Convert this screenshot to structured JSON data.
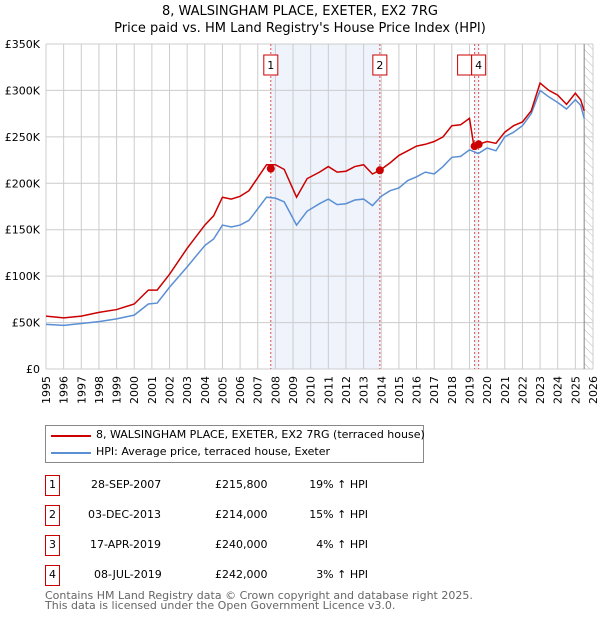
{
  "chart_data": {
    "type": "line",
    "title": "8, WALSINGHAM PLACE, EXETER, EX2 7RG",
    "subtitle": "Price paid vs. HM Land Registry's House Price Index (HPI)",
    "xlim": [
      1995,
      2026
    ],
    "ylim": [
      0,
      350000
    ],
    "x_ticks": [
      "1995",
      "1996",
      "1997",
      "1998",
      "1999",
      "2000",
      "2001",
      "2002",
      "2003",
      "2004",
      "2005",
      "2006",
      "2007",
      "2008",
      "2009",
      "2010",
      "2011",
      "2012",
      "2013",
      "2014",
      "2015",
      "2016",
      "2017",
      "2018",
      "2019",
      "2020",
      "2021",
      "2022",
      "2023",
      "2024",
      "2025",
      "2026"
    ],
    "y_ticks": [
      {
        "v": 0,
        "label": "£0"
      },
      {
        "v": 50000,
        "label": "£50K"
      },
      {
        "v": 100000,
        "label": "£100K"
      },
      {
        "v": 150000,
        "label": "£150K"
      },
      {
        "v": 200000,
        "label": "£200K"
      },
      {
        "v": 250000,
        "label": "£250K"
      },
      {
        "v": 300000,
        "label": "£300K"
      },
      {
        "v": 350000,
        "label": "£350K"
      }
    ],
    "grid": true,
    "series": [
      {
        "name": "8, WALSINGHAM PLACE, EXETER, EX2 7RG (terraced house)",
        "color": "#cc0000",
        "x": [
          1995,
          1996,
          1997,
          1998,
          1999,
          2000,
          2000.8,
          2001.3,
          2002,
          2003,
          2004,
          2004.5,
          2005,
          2005.5,
          2006,
          2006.5,
          2007.5,
          2008,
          2008.5,
          2009.2,
          2009.8,
          2010.5,
          2011,
          2011.5,
          2012,
          2012.5,
          2013,
          2013.5,
          2013.92,
          2014.5,
          2015,
          2015.5,
          2016,
          2016.5,
          2017,
          2017.5,
          2018,
          2018.5,
          2019,
          2019.25,
          2019.52,
          2020,
          2020.5,
          2021,
          2021.5,
          2022,
          2022.5,
          2023,
          2023.5,
          2024,
          2024.5,
          2025,
          2025.3,
          2025.5
        ],
        "y": [
          57000,
          55000,
          57000,
          61000,
          64000,
          70000,
          85000,
          85000,
          102000,
          130000,
          155000,
          165000,
          185000,
          183000,
          186000,
          192000,
          220000,
          220000,
          215000,
          185000,
          205000,
          212000,
          218000,
          212000,
          213000,
          218000,
          220000,
          210000,
          214000,
          222000,
          230000,
          235000,
          240000,
          242000,
          245000,
          250000,
          262000,
          263000,
          270000,
          240000,
          242000,
          245000,
          243000,
          255000,
          262000,
          266000,
          278000,
          308000,
          300000,
          295000,
          285000,
          297000,
          290000,
          278000
        ]
      },
      {
        "name": "HPI: Average price, terraced house, Exeter",
        "color": "#5b8fd4",
        "x": [
          1995,
          1996,
          1997,
          1998,
          1999,
          2000,
          2000.8,
          2001.3,
          2002,
          2003,
          2004,
          2004.5,
          2005,
          2005.5,
          2006,
          2006.5,
          2007.5,
          2008,
          2008.5,
          2009.2,
          2009.8,
          2010.5,
          2011,
          2011.5,
          2012,
          2012.5,
          2013,
          2013.5,
          2014,
          2014.5,
          2015,
          2015.5,
          2016,
          2016.5,
          2017,
          2017.5,
          2018,
          2018.5,
          2019,
          2019.5,
          2020,
          2020.5,
          2021,
          2021.5,
          2022,
          2022.5,
          2023,
          2023.5,
          2024,
          2024.5,
          2025,
          2025.3,
          2025.5
        ],
        "y": [
          48000,
          47000,
          49000,
          51000,
          54000,
          58000,
          70000,
          71000,
          88000,
          110000,
          133000,
          140000,
          155000,
          153000,
          155000,
          160000,
          185000,
          184000,
          180000,
          155000,
          170000,
          178000,
          183000,
          177000,
          178000,
          182000,
          183000,
          176000,
          186000,
          192000,
          195000,
          203000,
          207000,
          212000,
          210000,
          218000,
          228000,
          229000,
          236000,
          232000,
          238000,
          235000,
          250000,
          255000,
          262000,
          275000,
          300000,
          293000,
          287000,
          280000,
          290000,
          284000,
          270000
        ]
      }
    ],
    "sales": [
      {
        "id": "1",
        "x": 2007.74,
        "y": 215800
      },
      {
        "id": "2",
        "x": 2013.92,
        "y": 214000
      },
      {
        "id": "3",
        "x": 2019.29,
        "y": 240000
      },
      {
        "id": "4",
        "x": 2019.52,
        "y": 242000
      }
    ],
    "annotations": "shaded between sales 1-2 and 3-4; hatched future region after 2025.5"
  },
  "table": [
    {
      "n": "1",
      "date": "28-SEP-2007",
      "price": "£215,800",
      "hpi": "19% ↑ HPI"
    },
    {
      "n": "2",
      "date": "03-DEC-2013",
      "price": "£214,000",
      "hpi": "15% ↑ HPI"
    },
    {
      "n": "3",
      "date": "17-APR-2019",
      "price": "£240,000",
      "hpi": "4% ↑ HPI"
    },
    {
      "n": "4",
      "date": "08-JUL-2019",
      "price": "£242,000",
      "hpi": "3% ↑ HPI"
    }
  ],
  "footer": [
    "Contains HM Land Registry data © Crown copyright and database right 2025.",
    "This data is licensed under the Open Government Licence v3.0."
  ]
}
